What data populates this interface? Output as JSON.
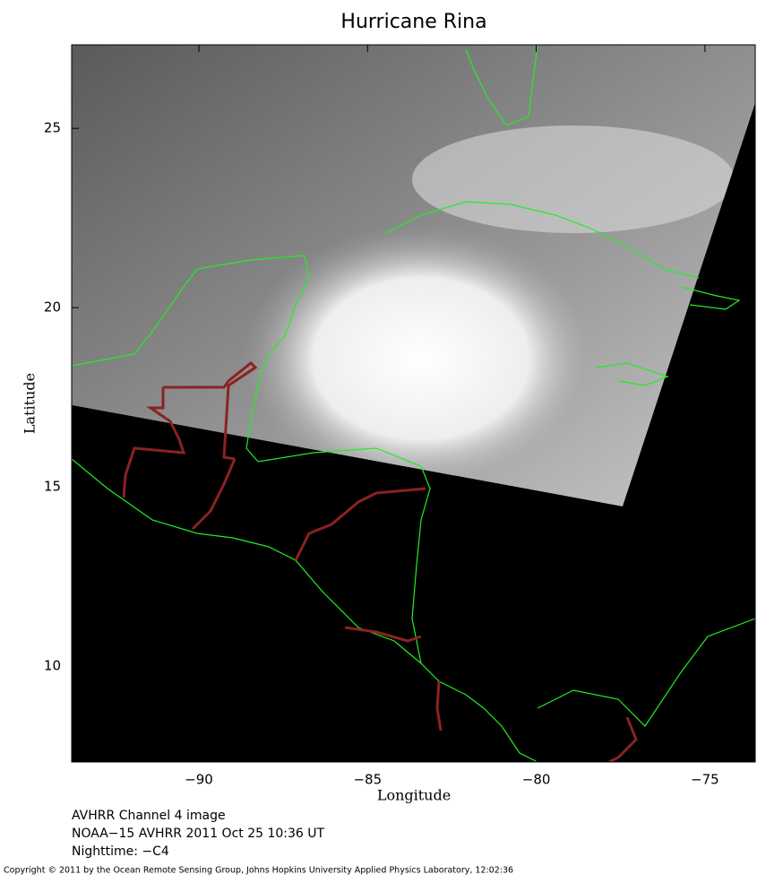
{
  "chart_data": {
    "type": "map",
    "title": "Hurricane Rina",
    "xlabel": "Longitude",
    "ylabel": "Latitude",
    "xlim": [
      -93.77,
      -73.51
    ],
    "ylim": [
      7.33,
      27.33
    ],
    "xticks": [
      {
        "value": -90,
        "label": "−90"
      },
      {
        "value": -85,
        "label": "−85"
      },
      {
        "value": -80,
        "label": "−80"
      },
      {
        "value": -75,
        "label": "−75"
      }
    ],
    "yticks": [
      10,
      15,
      20,
      25
    ],
    "notes": [
      "AVHRR Channel 4 image",
      "NOAA−15 AVHRR 2011 Oct 25 10:36 UT",
      "Nighttime: −C4"
    ],
    "copyright": "Copyright © 2011 by the Ocean Remote Sensing Group, Johns Hopkins University Applied Physics Laboratory, 12:02:36"
  }
}
